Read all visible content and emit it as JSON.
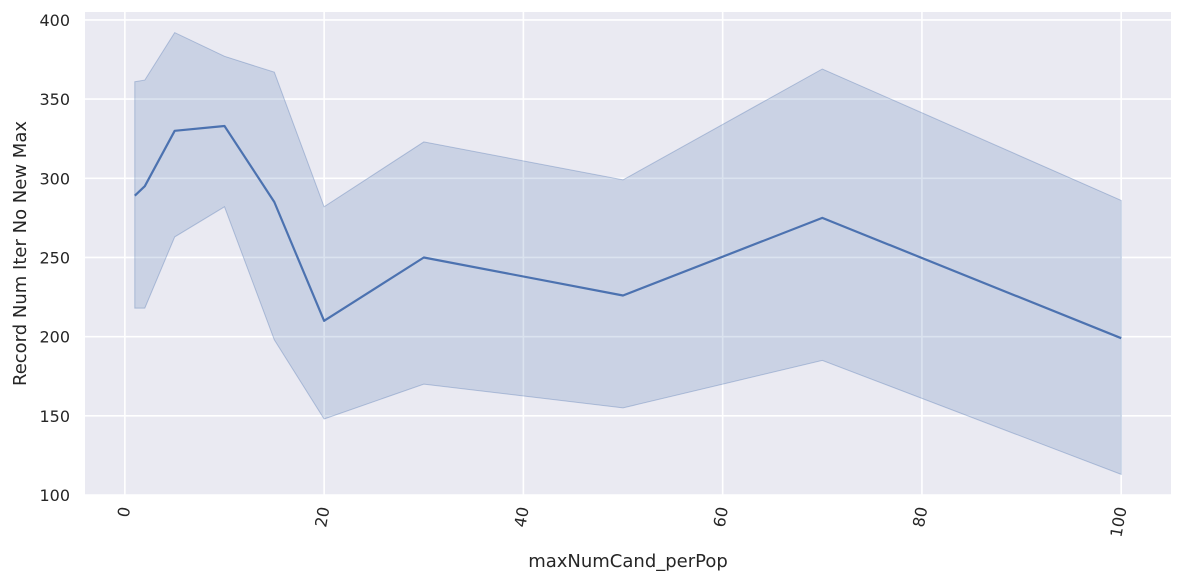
{
  "chart_data": {
    "type": "line",
    "title": "",
    "xlabel": "maxNumCand_perPop",
    "ylabel": "Record Num Iter No New Max",
    "xlim": [
      -4,
      105
    ],
    "ylim": [
      100,
      405
    ],
    "grid": true,
    "xticks": [
      {
        "value": 0,
        "label": "0"
      },
      {
        "value": 20,
        "label": "20"
      },
      {
        "value": 40,
        "label": "40"
      },
      {
        "value": 60,
        "label": "60"
      },
      {
        "value": 80,
        "label": "80"
      },
      {
        "value": 100,
        "label": "100"
      }
    ],
    "xtick_rotation": -80,
    "yticks": [
      {
        "value": 100,
        "label": "100"
      },
      {
        "value": 150,
        "label": "150"
      },
      {
        "value": 200,
        "label": "200"
      },
      {
        "value": 250,
        "label": "250"
      },
      {
        "value": 300,
        "label": "300"
      },
      {
        "value": 350,
        "label": "350"
      },
      {
        "value": 400,
        "label": "400"
      }
    ],
    "series": [
      {
        "color": "#4c72b0",
        "band_color": "#4c72b0",
        "band_opacity": 0.2,
        "x": [
          1,
          2,
          5,
          10,
          15,
          20,
          30,
          50,
          70,
          100
        ],
        "y": [
          289,
          295,
          330,
          333,
          285,
          210,
          250,
          226,
          275,
          199
        ],
        "lower": [
          218,
          218,
          263,
          282,
          198,
          148,
          170,
          155,
          185,
          113
        ],
        "upper": [
          361,
          362,
          392,
          377,
          367,
          282,
          323,
          299,
          369,
          286
        ]
      }
    ],
    "colors": {
      "plot_background": "#eaeaf2",
      "grid": "#ffffff",
      "text": "#262626"
    }
  }
}
